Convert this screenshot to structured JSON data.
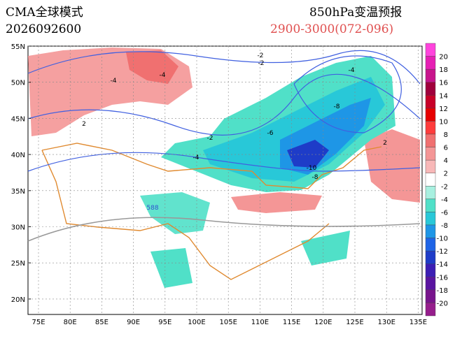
{
  "header": {
    "model": "CMA全球模式",
    "init_time": "2026092600",
    "product": "850hPa变温预报",
    "period": "2900-3000(072-096)"
  },
  "lat_labels": [
    "55N",
    "50N",
    "45N",
    "40N",
    "35N",
    "30N",
    "25N",
    "20N"
  ],
  "lon_labels": [
    "75E",
    "80E",
    "85E",
    "90E",
    "95E",
    "100E",
    "105E",
    "110E",
    "115E",
    "120E",
    "125E",
    "130E",
    "135E"
  ],
  "colorbar": {
    "labels": [
      "20",
      "18",
      "16",
      "14",
      "12",
      "10",
      "8",
      "6",
      "4",
      "2",
      "-2",
      "-4",
      "-6",
      "-8",
      "-10",
      "-12",
      "-14",
      "-16",
      "-18",
      "-20"
    ],
    "colors": [
      "#ff44dd",
      "#e61fb4",
      "#c8148c",
      "#a0003c",
      "#c80028",
      "#e60000",
      "#ff3c3c",
      "#f07070",
      "#f49696",
      "#f8b8b8",
      "#ffffff",
      "#a8f0e0",
      "#50e0c8",
      "#28c8d8",
      "#1e96e6",
      "#1e64e6",
      "#1e3cc8",
      "#3c1eb4",
      "#5a14a0",
      "#78148c",
      "#961e8c"
    ]
  },
  "contour_labels": [
    "-2",
    "-4",
    "-4",
    "2",
    "-4",
    "-8",
    "-6",
    "-2",
    "-4",
    "2",
    "-10",
    "-8",
    "-2",
    "588"
  ]
}
